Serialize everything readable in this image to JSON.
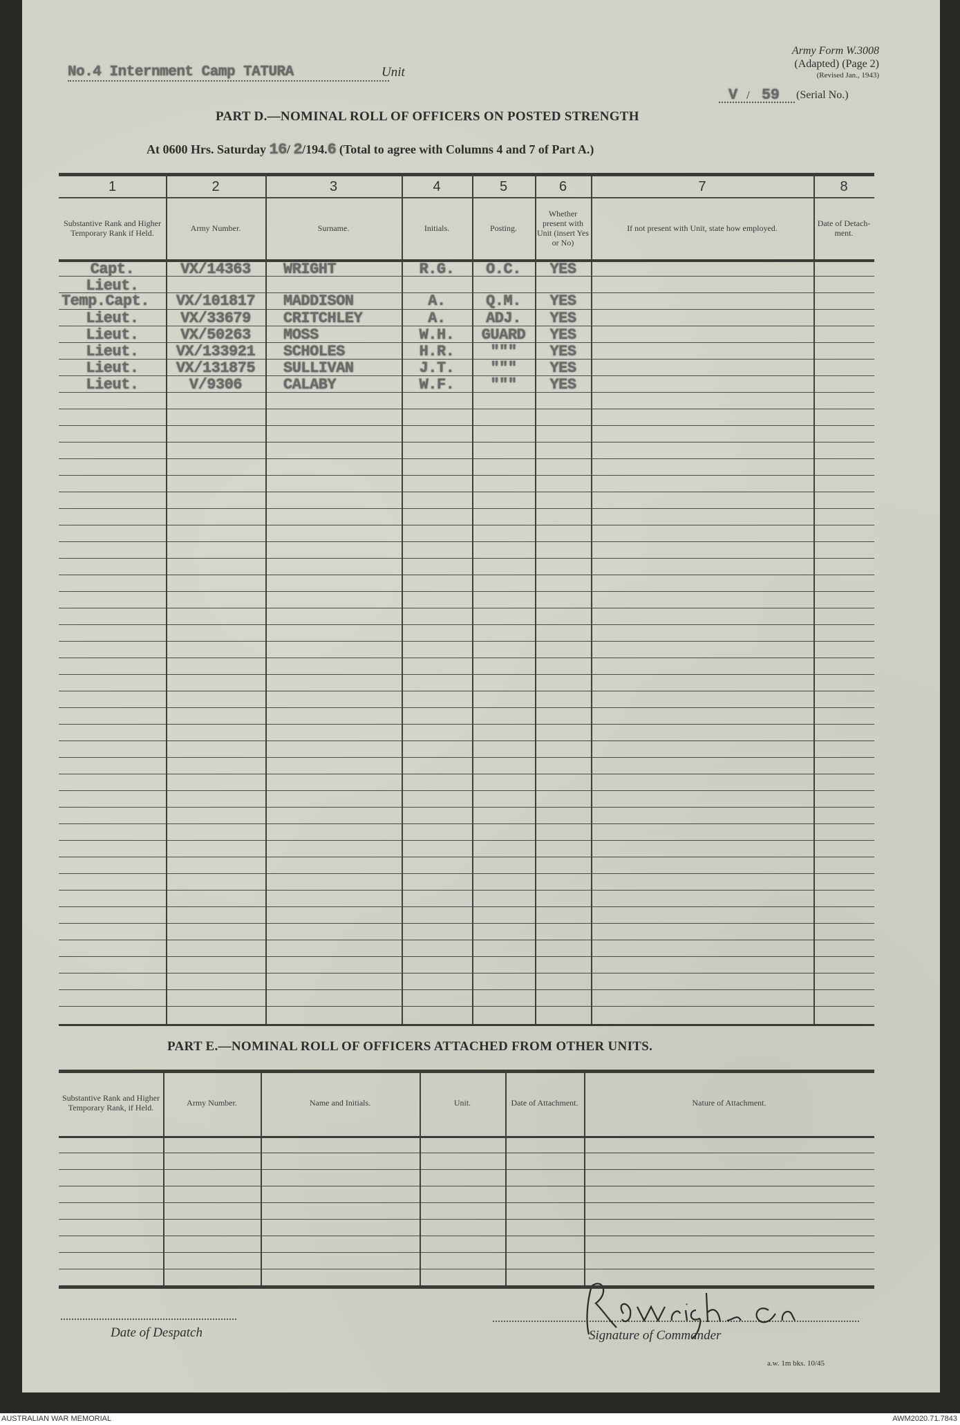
{
  "header": {
    "unit_value": "No.4 Internment Camp TATURA",
    "unit_label": "Unit",
    "form_line1": "Army Form W.3008",
    "form_line2": "(Adapted) (Page 2)",
    "form_line3": "(Revised Jan., 1943)",
    "serial_prefix": "V",
    "serial_number": "59",
    "serial_label": "(Serial No.)",
    "part_d_title": "PART D.—NOMINAL ROLL OF OFFICERS ON POSTED STRENGTH",
    "date_prefix": "At 0600 Hrs. Saturday",
    "date_day": "16",
    "date_month": "2",
    "date_year_prefix": "/194.",
    "date_year_digit": "6",
    "date_suffix": "(Total to agree with Columns 4 and 7 of Part A.)"
  },
  "part_d": {
    "column_numbers": [
      "1",
      "2",
      "3",
      "4",
      "5",
      "6",
      "7",
      "8"
    ],
    "column_headers": [
      "Substantive Rank and Higher Temporary Rank if Held.",
      "Army Number.",
      "Surname.",
      "Initials.",
      "Posting.",
      "Whether present with Unit (insert Yes or No)",
      "If not present with Unit, state how employed.",
      "Date of Detach-ment."
    ],
    "entries": [
      {
        "rank": "Capt.",
        "army_number": "VX/14363",
        "surname": "WRIGHT",
        "initials": "R.G.",
        "posting": "O.C.",
        "present": "YES"
      },
      {
        "rank": "Lieut.",
        "army_number": "",
        "surname": "",
        "initials": "",
        "posting": "",
        "present": ""
      },
      {
        "rank": "Temp.Capt.",
        "army_number": "VX/101817",
        "surname": "MADDISON",
        "initials": "A.",
        "posting": "Q.M.",
        "present": "YES"
      },
      {
        "rank": "Lieut.",
        "army_number": "VX/33679",
        "surname": "CRITCHLEY",
        "initials": "A.",
        "posting": "ADJ.",
        "present": "YES"
      },
      {
        "rank": "Lieut.",
        "army_number": "VX/50263",
        "surname": "MOSS",
        "initials": "W.H.",
        "posting": "GUARD",
        "present": "YES"
      },
      {
        "rank": "Lieut.",
        "army_number": "VX/133921",
        "surname": "SCHOLES",
        "initials": "H.R.",
        "posting": "\"\"\"",
        "present": "YES"
      },
      {
        "rank": "Lieut.",
        "army_number": "VX/131875",
        "surname": "SULLIVAN",
        "initials": "J.T.",
        "posting": "\"\"\"",
        "present": "YES"
      },
      {
        "rank": "Lieut.",
        "army_number": "V/9306",
        "surname": "CALABY",
        "initials": "W.F.",
        "posting": "\"\"\"",
        "present": "YES"
      }
    ]
  },
  "part_e": {
    "title": "PART E.—NOMINAL ROLL OF OFFICERS ATTACHED FROM OTHER UNITS.",
    "column_headers": [
      "Substantive Rank and Higher Temporary Rank, if Held.",
      "Army Number.",
      "Name and Initials.",
      "Unit.",
      "Date of Attachment.",
      "Nature of Attachment."
    ]
  },
  "signoff": {
    "date_label": "Date of Despatch",
    "signature_label": "Signature of Commander",
    "signature_text": "R G Wright Capt",
    "print_note": "a.w. 1m bks. 10/45"
  },
  "footer": {
    "left": "AUSTRALIAN WAR MEMORIAL",
    "right": "AWM2020.71.7843"
  }
}
